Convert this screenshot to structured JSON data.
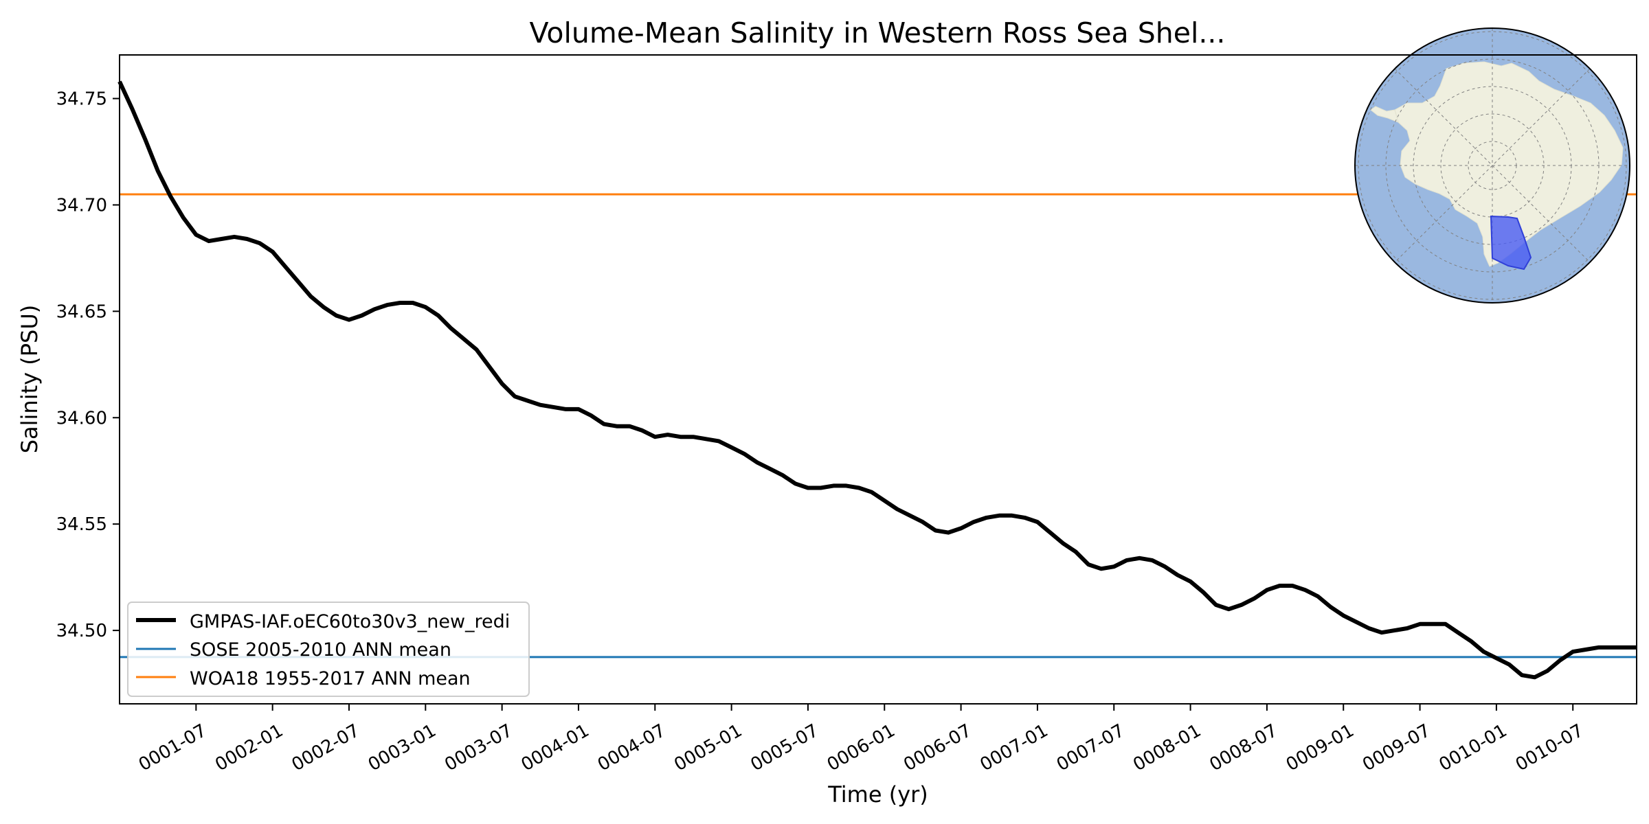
{
  "chart_data": {
    "type": "line",
    "title": "Volume-Mean Salinity in Western Ross Sea Shel...",
    "xlabel": "Time (yr)",
    "ylabel": "Salinity (PSU)",
    "xlim": [
      0.0,
      119.0
    ],
    "ylim": [
      34.4655,
      34.7705
    ],
    "x_unit": "months since 0001-01",
    "yticks": [
      34.5,
      34.55,
      34.6,
      34.65,
      34.7,
      34.75
    ],
    "ytick_labels": [
      "34.50",
      "34.55",
      "34.60",
      "34.65",
      "34.70",
      "34.75"
    ],
    "xticks": [
      6,
      12,
      18,
      24,
      30,
      36,
      42,
      48,
      54,
      60,
      66,
      72,
      78,
      84,
      90,
      96,
      102,
      108,
      114
    ],
    "xtick_labels": [
      "0001-07",
      "0002-01",
      "0002-07",
      "0003-01",
      "0003-07",
      "0004-01",
      "0004-07",
      "0005-01",
      "0005-07",
      "0006-01",
      "0006-07",
      "0007-01",
      "0007-07",
      "0008-01",
      "0008-07",
      "0009-01",
      "0009-07",
      "0010-01",
      "0010-07"
    ],
    "series": [
      {
        "name": "GMPAS-IAF.oEC60to30v3_new_redi",
        "color": "#000000",
        "x": [
          0,
          1,
          2,
          3,
          4,
          5,
          6,
          7,
          8,
          9,
          10,
          11,
          12,
          13,
          14,
          15,
          16,
          17,
          18,
          19,
          20,
          21,
          22,
          23,
          24,
          25,
          26,
          27,
          28,
          29,
          30,
          31,
          32,
          33,
          34,
          35,
          36,
          37,
          38,
          39,
          40,
          41,
          42,
          43,
          44,
          45,
          46,
          47,
          48,
          49,
          50,
          51,
          52,
          53,
          54,
          55,
          56,
          57,
          58,
          59,
          60,
          61,
          62,
          63,
          64,
          65,
          66,
          67,
          68,
          69,
          70,
          71,
          72,
          73,
          74,
          75,
          76,
          77,
          78,
          79,
          80,
          81,
          82,
          83,
          84,
          85,
          86,
          87,
          88,
          89,
          90,
          91,
          92,
          93,
          94,
          95,
          96,
          97,
          98,
          99,
          100,
          101,
          102,
          103,
          104,
          105,
          106,
          107,
          108,
          109,
          110,
          111,
          112,
          113,
          114,
          115,
          116,
          117,
          118,
          119
        ],
        "values": [
          34.758,
          34.745,
          34.731,
          34.716,
          34.704,
          34.694,
          34.686,
          34.683,
          34.684,
          34.685,
          34.684,
          34.682,
          34.678,
          34.671,
          34.664,
          34.657,
          34.652,
          34.648,
          34.646,
          34.648,
          34.651,
          34.653,
          34.654,
          34.654,
          34.652,
          34.648,
          34.642,
          34.637,
          34.632,
          34.624,
          34.616,
          34.61,
          34.608,
          34.606,
          34.605,
          34.604,
          34.604,
          34.601,
          34.597,
          34.596,
          34.596,
          34.594,
          34.591,
          34.592,
          34.591,
          34.591,
          34.59,
          34.589,
          34.586,
          34.583,
          34.579,
          34.576,
          34.573,
          34.569,
          34.567,
          34.567,
          34.568,
          34.568,
          34.567,
          34.565,
          34.561,
          34.557,
          34.554,
          34.551,
          34.547,
          34.546,
          34.548,
          34.551,
          34.553,
          34.554,
          34.554,
          34.553,
          34.551,
          34.546,
          34.541,
          34.537,
          34.531,
          34.529,
          34.53,
          34.533,
          34.534,
          34.533,
          34.53,
          34.526,
          34.523,
          34.518,
          34.512,
          34.51,
          34.512,
          34.515,
          34.519,
          34.521,
          34.521,
          34.519,
          34.516,
          34.511,
          34.507,
          34.504,
          34.501,
          34.499,
          34.5,
          34.501,
          34.503,
          34.503,
          34.503,
          34.499,
          34.495,
          34.49,
          34.487,
          34.484,
          34.479,
          34.478,
          34.481,
          34.486,
          34.49,
          34.491,
          34.492,
          34.492,
          34.492,
          34.492
        ]
      },
      {
        "name": "SOSE 2005-2010 ANN mean",
        "color": "#1f77b4",
        "constant": 34.4875
      },
      {
        "name": "WOA18 1955-2017 ANN mean",
        "color": "#ff7f0e",
        "constant": 34.705
      }
    ],
    "legend_position": "lower-left",
    "inset_map": {
      "name": "antarctica-region-inset",
      "ocean_color": "#9ab8e0",
      "land_color": "#efefdf",
      "region_color": "#4a5cf2"
    }
  }
}
